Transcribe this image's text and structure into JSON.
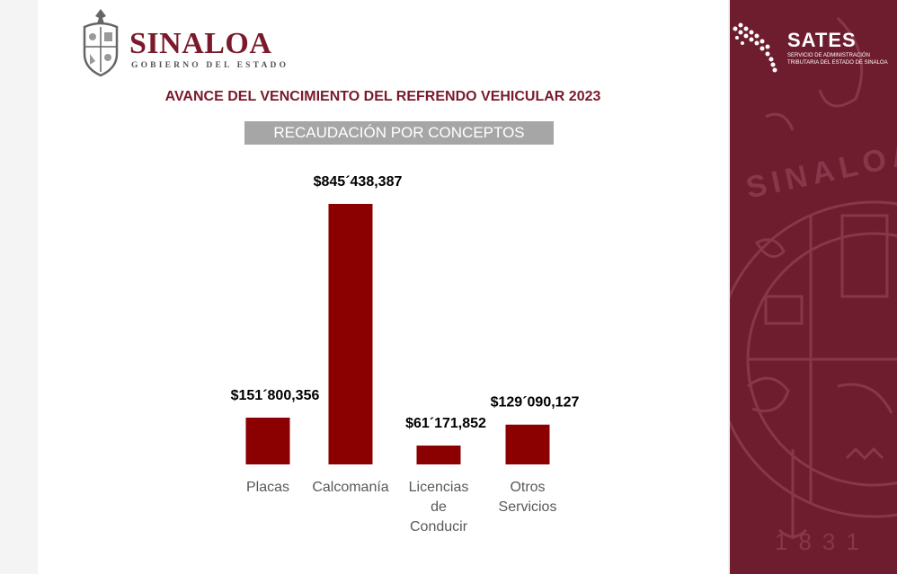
{
  "header": {
    "logo_title": "SINALOA",
    "logo_subtitle": "GOBIERNO DEL ESTADO",
    "title": "AVANCE DEL VENCIMIENTO DEL REFRENDO VEHICULAR 2023",
    "subtitle": "RECAUDACIÓN POR CONCEPTOS"
  },
  "sidebar": {
    "brand": "SATES",
    "brand_line1": "SERVICIO DE ADMINISTRACIÓN",
    "brand_line2": "TRIBUTARIA DEL ESTADO DE SINALOA",
    "seal_text": "SINALOA",
    "seal_year": "1831"
  },
  "colors": {
    "bar": "#8b0000",
    "brand": "#7a1a2a",
    "panel": "#6e1d2e"
  },
  "chart_data": {
    "type": "bar",
    "title": "",
    "xlabel": "",
    "ylabel": "",
    "categories": [
      [
        "Placas"
      ],
      [
        "Calcomanía"
      ],
      [
        "Licencias",
        "de",
        "Conducir"
      ],
      [
        "Otros",
        "Servicios"
      ]
    ],
    "values": [
      151800356,
      845438387,
      61171852,
      129090127
    ],
    "value_labels": [
      "$151´800,356",
      "$845´438,387",
      "$61´171,852",
      "$129´090,127"
    ],
    "grid": false,
    "legend": "none"
  }
}
